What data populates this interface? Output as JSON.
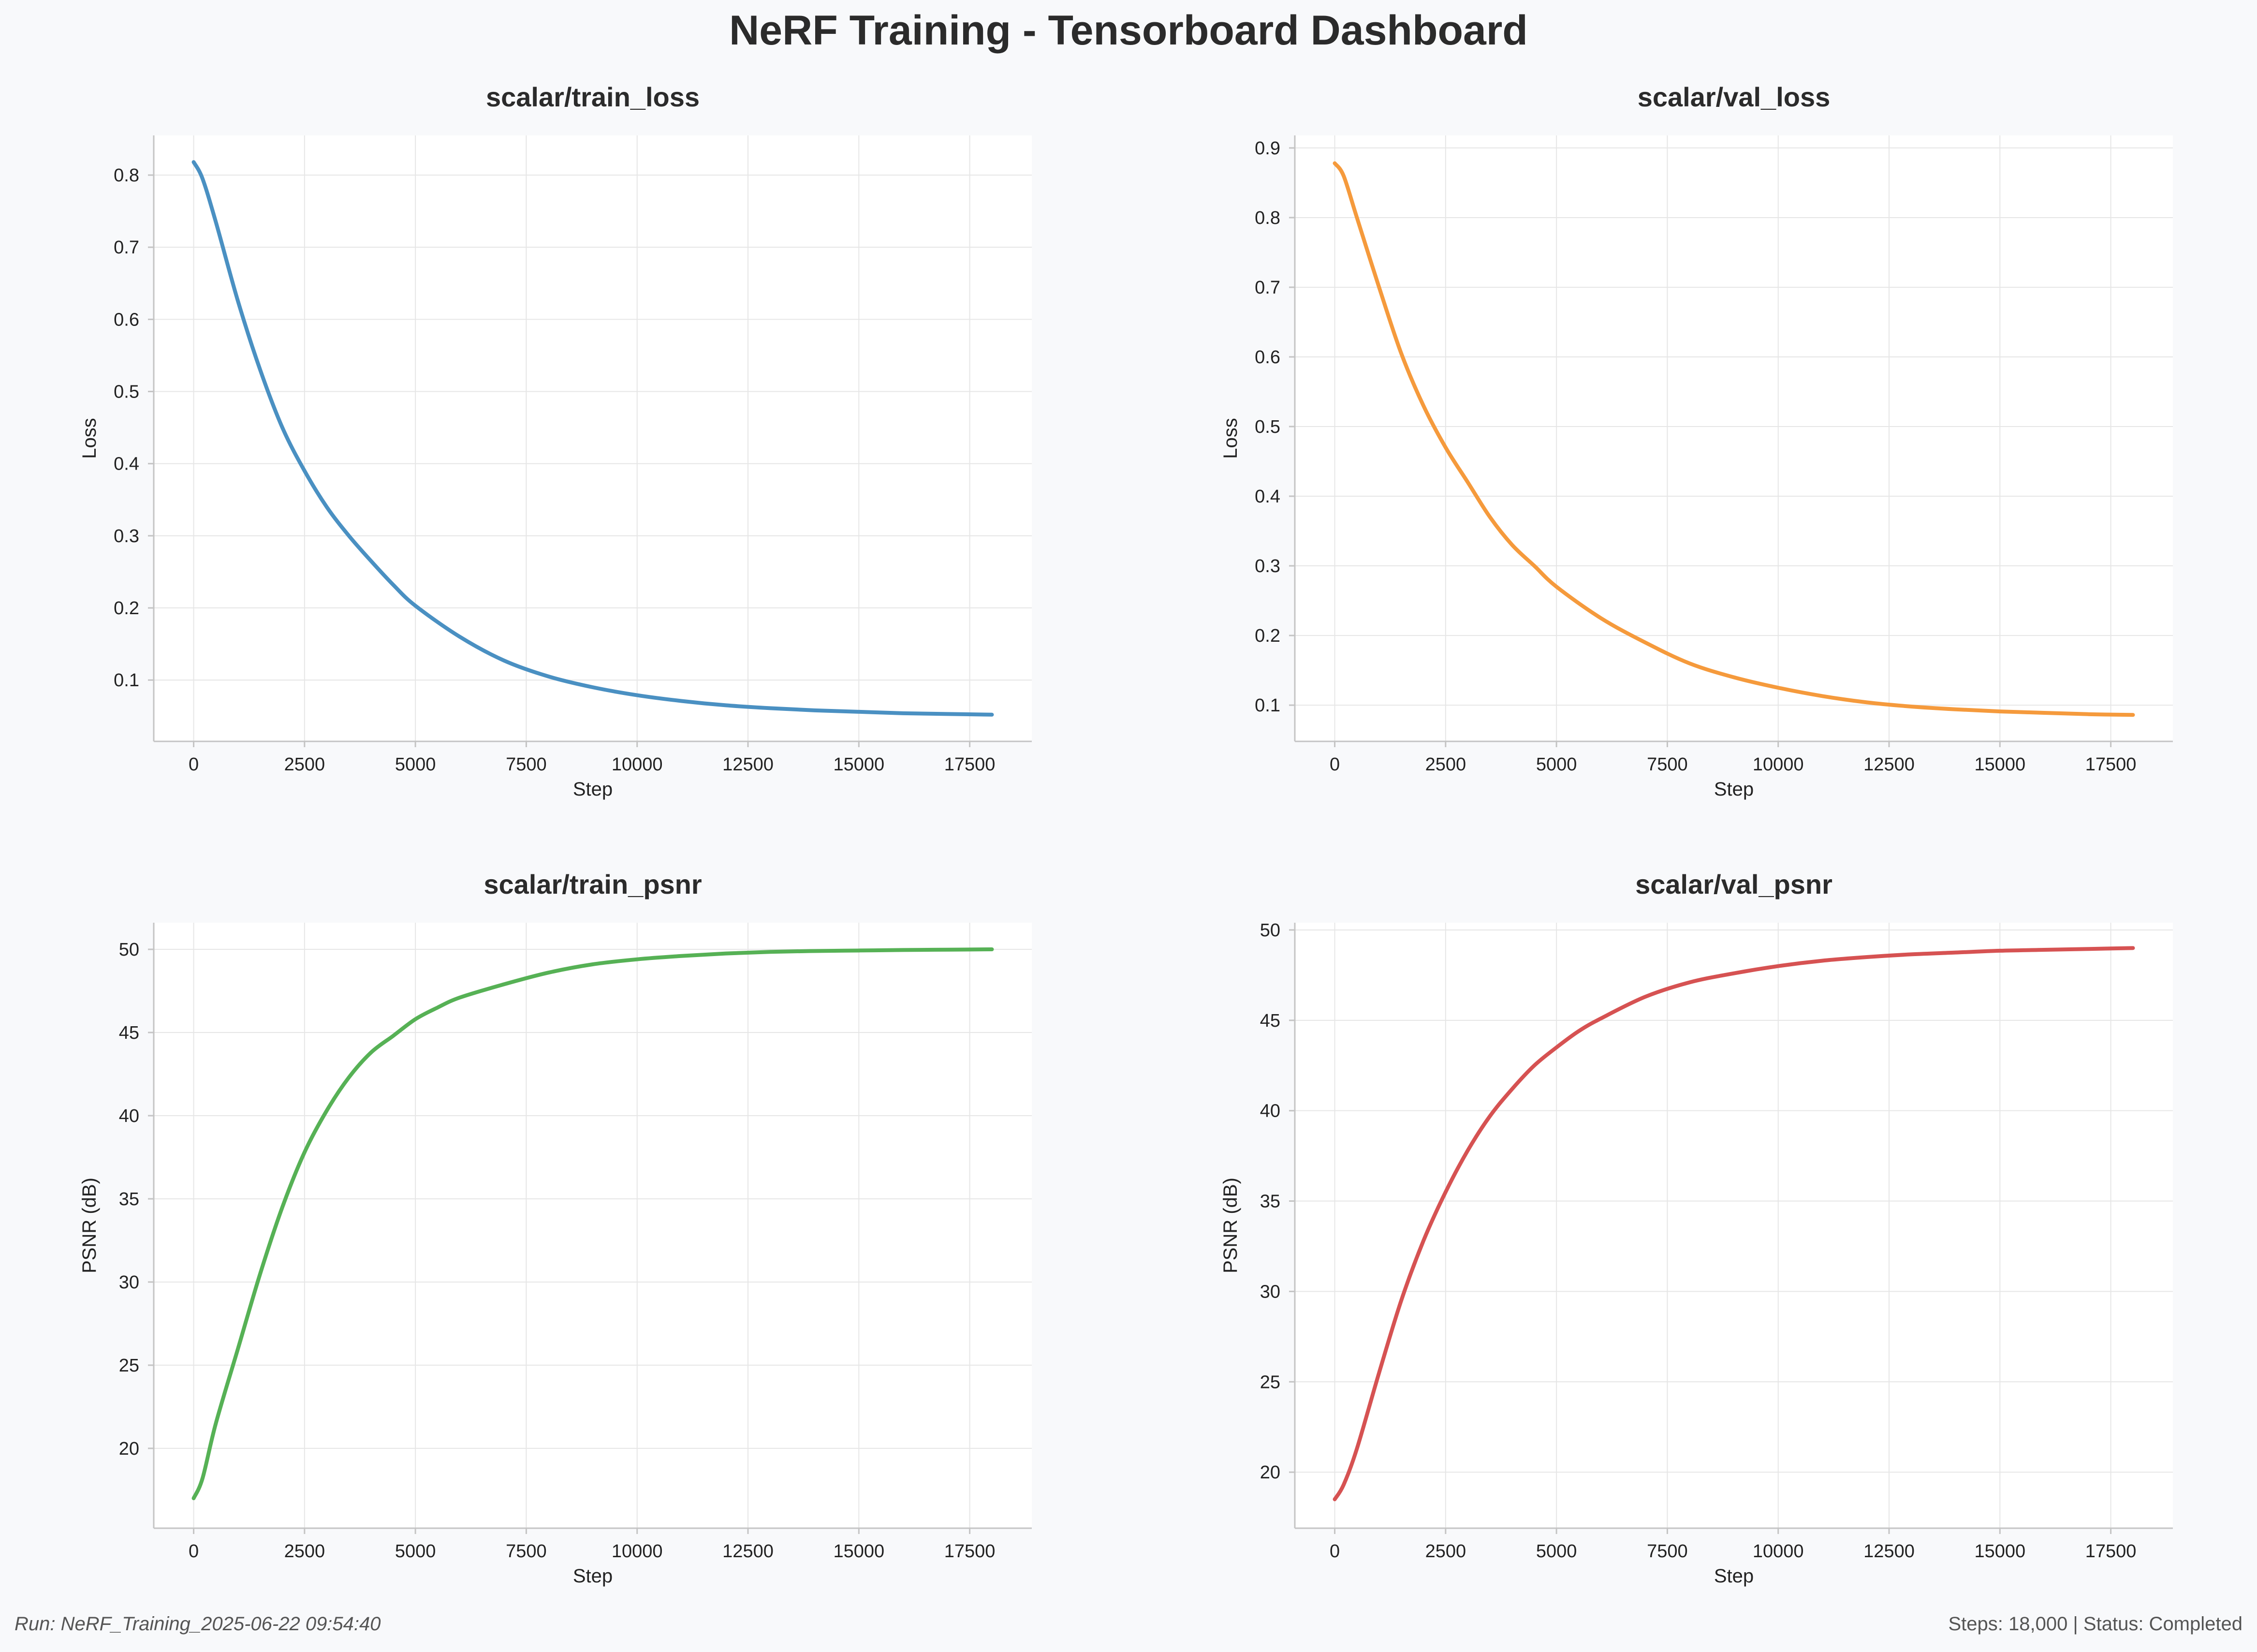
{
  "dashboard": {
    "title": "NeRF Training - Tensorboard Dashboard",
    "footer_left": "Run: NeRF_Training_2025-06-22 09:54:40",
    "footer_right": "Steps: 18,000 | Status: Completed"
  },
  "chart_data": [
    {
      "type": "line",
      "title": "scalar/train_loss",
      "xlabel": "Step",
      "ylabel": "Loss",
      "xlim": [
        -900,
        18900
      ],
      "ylim": [
        0.015,
        0.855
      ],
      "xticks": [
        0,
        2500,
        5000,
        7500,
        10000,
        12500,
        15000,
        17500
      ],
      "yticks": [
        0.1,
        0.2,
        0.3,
        0.4,
        0.5,
        0.6,
        0.7,
        0.8
      ],
      "grid": true,
      "color": "#4a90c2",
      "series": [
        {
          "x": [
            0,
            200,
            500,
            1000,
            1500,
            2000,
            2500,
            3000,
            3500,
            4000,
            4500,
            5000,
            6000,
            7000,
            8000,
            9000,
            10000,
            11000,
            12000,
            13000,
            14000,
            15000,
            16000,
            17000,
            18000
          ],
          "values": [
            0.818,
            0.795,
            0.735,
            0.625,
            0.53,
            0.45,
            0.39,
            0.34,
            0.3,
            0.265,
            0.232,
            0.203,
            0.16,
            0.127,
            0.105,
            0.09,
            0.079,
            0.071,
            0.065,
            0.061,
            0.058,
            0.056,
            0.054,
            0.053,
            0.052
          ]
        }
      ]
    },
    {
      "type": "line",
      "title": "scalar/val_loss",
      "xlabel": "Step",
      "ylabel": "Loss",
      "xlim": [
        -900,
        18900
      ],
      "ylim": [
        0.048,
        0.918
      ],
      "xticks": [
        0,
        2500,
        5000,
        7500,
        10000,
        12500,
        15000,
        17500
      ],
      "yticks": [
        0.1,
        0.2,
        0.3,
        0.4,
        0.5,
        0.6,
        0.7,
        0.8,
        0.9
      ],
      "grid": true,
      "color": "#f59a3c",
      "series": [
        {
          "x": [
            0,
            200,
            500,
            1000,
            1500,
            2000,
            2500,
            3000,
            3500,
            4000,
            4500,
            5000,
            6000,
            7000,
            8000,
            9000,
            10000,
            11000,
            12000,
            13000,
            14000,
            15000,
            16000,
            17000,
            18000
          ],
          "values": [
            0.878,
            0.86,
            0.8,
            0.7,
            0.605,
            0.53,
            0.47,
            0.42,
            0.37,
            0.33,
            0.3,
            0.27,
            0.225,
            0.19,
            0.16,
            0.14,
            0.125,
            0.113,
            0.104,
            0.098,
            0.094,
            0.091,
            0.089,
            0.087,
            0.086
          ]
        }
      ]
    },
    {
      "type": "line",
      "title": "scalar/train_psnr",
      "xlabel": "Step",
      "ylabel": "PSNR (dB)",
      "xlim": [
        -900,
        18900
      ],
      "ylim": [
        15.2,
        51.6
      ],
      "xticks": [
        0,
        2500,
        5000,
        7500,
        10000,
        12500,
        15000,
        17500
      ],
      "yticks": [
        20,
        25,
        30,
        35,
        40,
        45,
        50
      ],
      "grid": true,
      "color": "#56b155",
      "series": [
        {
          "x": [
            0,
            200,
            500,
            1000,
            1500,
            2000,
            2500,
            3000,
            3500,
            4000,
            4500,
            5000,
            5500,
            6000,
            7000,
            8000,
            9000,
            10000,
            11000,
            12000,
            13000,
            14000,
            15000,
            16000,
            17000,
            18000
          ],
          "values": [
            17.0,
            18.2,
            21.5,
            26.0,
            30.5,
            34.5,
            37.8,
            40.3,
            42.3,
            43.8,
            44.8,
            45.8,
            46.5,
            47.1,
            47.9,
            48.6,
            49.1,
            49.4,
            49.6,
            49.75,
            49.85,
            49.9,
            49.93,
            49.96,
            49.98,
            50.0
          ]
        }
      ]
    },
    {
      "type": "line",
      "title": "scalar/val_psnr",
      "xlabel": "Step",
      "ylabel": "PSNR (dB)",
      "xlim": [
        -900,
        18900
      ],
      "ylim": [
        16.9,
        50.4
      ],
      "xticks": [
        0,
        2500,
        5000,
        7500,
        10000,
        12500,
        15000,
        17500
      ],
      "yticks": [
        20,
        25,
        30,
        35,
        40,
        45,
        50
      ],
      "grid": true,
      "color": "#d65252",
      "series": [
        {
          "x": [
            0,
            200,
            500,
            1000,
            1500,
            2000,
            2500,
            3000,
            3500,
            4000,
            4500,
            5000,
            5500,
            6000,
            7000,
            8000,
            9000,
            10000,
            11000,
            12000,
            13000,
            14000,
            15000,
            16000,
            17000,
            18000
          ],
          "values": [
            18.5,
            19.3,
            21.3,
            25.5,
            29.5,
            32.8,
            35.5,
            37.8,
            39.7,
            41.2,
            42.5,
            43.5,
            44.4,
            45.1,
            46.3,
            47.1,
            47.6,
            48.0,
            48.3,
            48.5,
            48.65,
            48.75,
            48.85,
            48.9,
            48.95,
            49.0
          ]
        }
      ]
    }
  ]
}
